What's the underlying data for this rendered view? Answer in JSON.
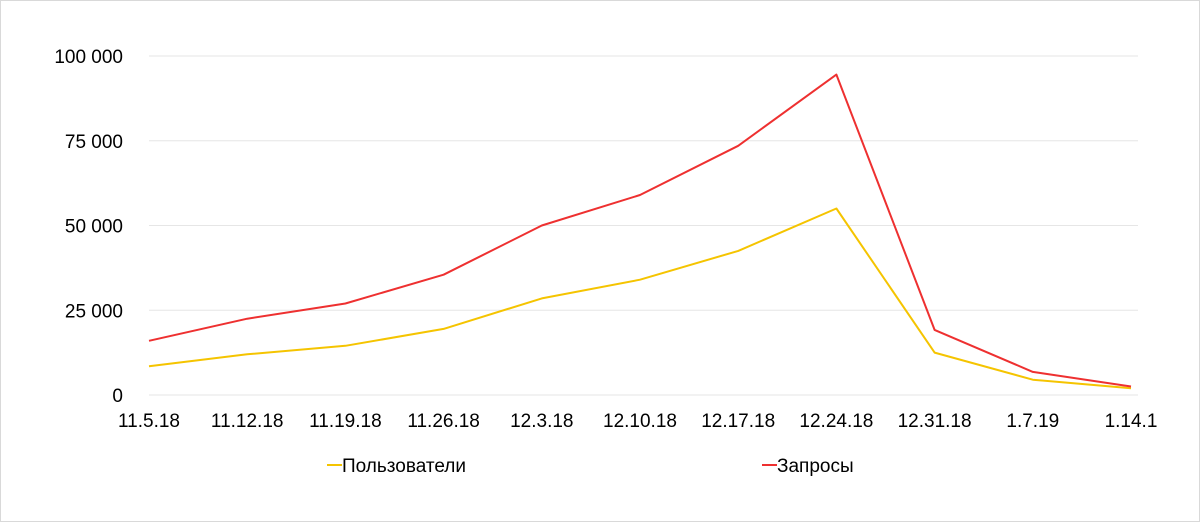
{
  "chart_data": {
    "type": "line",
    "title": "",
    "xlabel": "",
    "ylabel": "",
    "categories": [
      "11.5.18",
      "11.12.18",
      "11.19.18",
      "11.26.18",
      "12.3.18",
      "12.10.18",
      "12.17.18",
      "12.24.18",
      "12.31.18",
      "1.7.19",
      "1.14.1"
    ],
    "ylim": [
      0,
      100000
    ],
    "yticks": [
      0,
      25000,
      50000,
      75000,
      100000
    ],
    "ytick_labels": [
      "0",
      "25 000",
      "50 000",
      "75 000",
      "100 000"
    ],
    "grid": true,
    "legend": "bottom",
    "series": [
      {
        "name": "Пользователи",
        "color": "#f5c400",
        "values": [
          8500,
          12000,
          14500,
          19500,
          28500,
          34000,
          42500,
          55000,
          12500,
          4500,
          2000
        ]
      },
      {
        "name": "Запросы",
        "color": "#ee3030",
        "values": [
          16000,
          22500,
          27000,
          35500,
          50000,
          59000,
          73500,
          94500,
          19200,
          6800,
          2500
        ]
      }
    ]
  }
}
